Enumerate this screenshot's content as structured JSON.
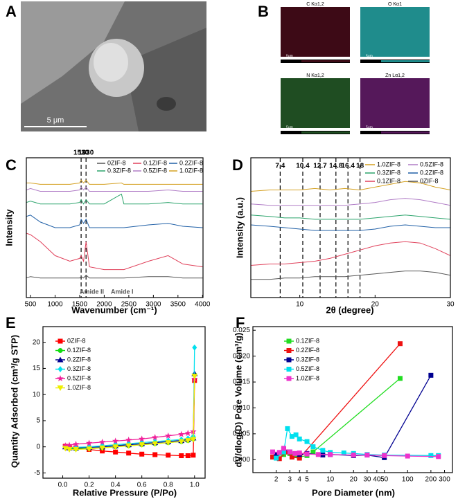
{
  "images": {
    "A": {
      "label": "A",
      "scale": "5 μm"
    },
    "B": {
      "label": "B",
      "maps": [
        {
          "title": "C Kα1,2",
          "scale": "5μm",
          "color": "#3d0a16"
        },
        {
          "title": "O Kα1",
          "scale": "5μm",
          "color": "#1f8c8c"
        },
        {
          "title": "N Kα1,2",
          "scale": "5μm",
          "color": "#1f4d22"
        },
        {
          "title": "Zn Lα1,2",
          "scale": "5μm",
          "color": "#55185a"
        }
      ]
    }
  },
  "chart_data": [
    {
      "type": "line",
      "label": "C",
      "xlabel": "Wavenumber (cm⁻¹)",
      "ylabel": "Intensity",
      "x": [
        415,
        500,
        700,
        1000,
        1300,
        1500,
        1530,
        1580,
        1630,
        1700,
        2000,
        2350,
        2400,
        2900,
        3300,
        3600,
        4000
      ],
      "xlim": [
        415,
        4010
      ],
      "ylim": [
        0,
        100
      ],
      "xticks": [
        500,
        1000,
        1500,
        2000,
        2500,
        3000,
        3500,
        4000
      ],
      "vlines": [
        1530,
        1630
      ],
      "annotations": [
        "Amide II",
        "Amide I"
      ],
      "legend": "upper center",
      "series": [
        {
          "name": "0ZIF-8",
          "color": "#555555",
          "values": [
            14,
            15,
            14,
            14,
            14,
            14,
            15,
            14,
            16,
            14,
            14,
            14,
            14,
            15,
            15,
            14,
            14
          ]
        },
        {
          "name": "0.1ZIF-8",
          "color": "#e0405a",
          "values": [
            46,
            45,
            40,
            30,
            26,
            28,
            30,
            26,
            40,
            22,
            20,
            20,
            20,
            26,
            30,
            24,
            22
          ]
        },
        {
          "name": "0.2ZIF-8",
          "color": "#1f5fa6",
          "values": [
            58,
            59,
            54,
            50,
            50,
            52,
            56,
            53,
            56,
            50,
            50,
            50,
            50,
            52,
            53,
            51,
            50
          ]
        },
        {
          "name": "0.3ZIF-8",
          "color": "#2aa36b",
          "values": [
            68,
            69,
            67,
            67,
            67,
            68,
            70,
            67,
            70,
            67,
            67,
            74,
            67,
            67,
            68,
            67,
            67
          ]
        },
        {
          "name": "0.5ZIF-8",
          "color": "#b07cc6",
          "values": [
            77,
            78,
            76,
            76,
            76,
            77,
            79,
            77,
            79,
            76,
            76,
            76,
            76,
            76,
            77,
            76,
            76
          ]
        },
        {
          "name": "1.0ZIF-8",
          "color": "#d4a020",
          "values": [
            82,
            82,
            81,
            81,
            81,
            82,
            84,
            82,
            84,
            81,
            81,
            82,
            81,
            81,
            81,
            81,
            81
          ]
        }
      ]
    },
    {
      "type": "line",
      "label": "D",
      "xlabel": "2θ (degree)",
      "ylabel": "Intensity (a.u.)",
      "x": [
        3.5,
        6,
        8,
        10,
        12,
        14,
        16,
        18,
        20,
        22,
        24,
        26,
        28,
        30
      ],
      "xlim": [
        3.5,
        30
      ],
      "ylim": [
        0,
        100
      ],
      "xticks": [
        10,
        20,
        30
      ],
      "vlines": [
        7.4,
        10.4,
        12.7,
        14.8,
        16.4,
        18
      ],
      "legend": "upper right",
      "series": [
        {
          "name": "1.0ZIF-8",
          "color": "#d4a020",
          "values": [
            76,
            77,
            77,
            77,
            78,
            77,
            78,
            77,
            79,
            81,
            83,
            82,
            79,
            77
          ]
        },
        {
          "name": "0.5ZIF-8",
          "color": "#b07cc6",
          "values": [
            67,
            66,
            66,
            66,
            66,
            66,
            66,
            67,
            68,
            70,
            71,
            70,
            68,
            66
          ]
        },
        {
          "name": "0.3ZIF-8",
          "color": "#2aa36b",
          "values": [
            59,
            58,
            57,
            57,
            56,
            56,
            56,
            56,
            57,
            58,
            59,
            58,
            57,
            56
          ]
        },
        {
          "name": "0.2ZIF-8",
          "color": "#1f5fa6",
          "values": [
            52,
            51,
            50,
            49,
            48,
            48,
            48,
            48,
            49,
            51,
            52,
            51,
            50,
            50
          ]
        },
        {
          "name": "0.1ZIF-8",
          "color": "#e0405a",
          "values": [
            23,
            24,
            24,
            25,
            26,
            28,
            31,
            34,
            37,
            39,
            40,
            39,
            35,
            30
          ]
        },
        {
          "name": "0ZIF-8",
          "color": "#555555",
          "values": [
            13,
            13,
            14,
            14,
            15,
            15,
            15,
            16,
            17,
            18,
            19,
            19,
            18,
            16
          ]
        }
      ]
    },
    {
      "type": "line",
      "label": "E",
      "xlabel": "Relative Pressure (P/Po)",
      "ylabel": "Quantity Adsorbed (cm³/g STP)",
      "x": [
        0.02,
        0.05,
        0.1,
        0.2,
        0.3,
        0.4,
        0.5,
        0.6,
        0.7,
        0.8,
        0.9,
        0.95,
        0.99,
        1.0
      ],
      "xlim": [
        -0.15,
        1.08
      ],
      "ylim": [
        -6,
        23
      ],
      "xticks": [
        {
          "value": 0,
          "label": "0.0"
        },
        0.2,
        0.4,
        0.6,
        0.8,
        {
          "value": 1,
          "label": "1.0"
        }
      ],
      "yticks": [
        -5,
        0,
        5,
        10,
        15,
        20
      ],
      "legend": "upper left",
      "series": [
        {
          "name": "0ZIF-8",
          "color": "#ff0000",
          "marker": "square",
          "values": [
            0.1,
            0,
            -0.2,
            -0.5,
            -0.8,
            -1.0,
            -1.2,
            -1.4,
            -1.5,
            -1.6,
            -1.7,
            -1.7,
            -1.6,
            12.7
          ]
        },
        {
          "name": "0.1ZIF-8",
          "color": "#11dd11",
          "marker": "circle",
          "values": [
            0,
            -0.3,
            -0.4,
            -0.3,
            -0.2,
            0,
            0.2,
            0.4,
            0.6,
            0.8,
            1.0,
            1.2,
            1.5,
            13.8
          ]
        },
        {
          "name": "0.2ZIF-8",
          "color": "#000090",
          "marker": "triangle",
          "values": [
            0,
            -0.2,
            -0.2,
            -0.1,
            0,
            0.2,
            0.4,
            0.6,
            0.8,
            1.0,
            1.2,
            1.4,
            1.7,
            14
          ]
        },
        {
          "name": "0.3ZIF-8",
          "color": "#00e0ee",
          "marker": "diamond",
          "values": [
            0,
            -0.2,
            -0.1,
            0,
            0.2,
            0.4,
            0.6,
            0.8,
            1.0,
            1.2,
            1.4,
            1.6,
            2.0,
            19
          ]
        },
        {
          "name": "0.5ZIF-8",
          "color": "#f0209a",
          "marker": "star",
          "values": [
            0.2,
            0.3,
            0.5,
            0.7,
            0.9,
            1.1,
            1.3,
            1.5,
            1.8,
            2.1,
            2.4,
            2.6,
            2.9,
            13
          ]
        },
        {
          "name": "1.0ZIF-8",
          "color": "#eeee00",
          "marker": "triangle-down",
          "values": [
            -0.3,
            -0.5,
            -0.5,
            -0.4,
            -0.2,
            0,
            0.2,
            0.4,
            0.6,
            0.8,
            1.0,
            1.2,
            1.4,
            13.5
          ]
        }
      ]
    },
    {
      "type": "line",
      "label": "F",
      "xlabel": "Pore Diameter (nm)",
      "ylabel": "dV/dlog(D) Pore Volume (cm³/g)",
      "xscale": "log",
      "xlim": [
        1,
        380
      ],
      "ylim": [
        -0.0025,
        0.0257
      ],
      "xticks": [
        2,
        3,
        4,
        5,
        10,
        20,
        30,
        40,
        50,
        100,
        200,
        300
      ],
      "yticks": [
        {
          "value": 0,
          "label": "0.000"
        },
        0.005,
        {
          "value": 0.01,
          "label": "0.010"
        },
        0.015,
        {
          "value": 0.02,
          "label": "0.020"
        },
        0.025
      ],
      "legend": "upper left",
      "series": [
        {
          "name": "0.1ZIF-8",
          "color": "#22dd22",
          "marker": "square",
          "x": [
            1.8,
            2.5,
            3,
            3.5,
            4,
            5,
            6,
            80
          ],
          "values": [
            0.0005,
            0.001,
            0.0012,
            0.0008,
            0.0005,
            0.0008,
            0.0015,
            0.0157
          ]
        },
        {
          "name": "0.2ZIF-8",
          "color": "#ee1111",
          "marker": "square",
          "x": [
            1.8,
            2.2,
            2.7,
            3.2,
            4,
            80
          ],
          "values": [
            0.0005,
            0.0002,
            0.0015,
            0.0005,
            0.0003,
            0.0224
          ]
        },
        {
          "name": "0.3ZIF-8",
          "color": "#000090",
          "marker": "square",
          "x": [
            2,
            2.5,
            3,
            4,
            5,
            8,
            10,
            20,
            30,
            50,
            200
          ],
          "values": [
            0.001,
            0.002,
            0.0015,
            0.001,
            0.0012,
            0.0009,
            0.001,
            0.0008,
            0.0009,
            0.0004,
            0.0163
          ]
        },
        {
          "name": "0.5ZIF-8",
          "color": "#00e0ee",
          "marker": "square",
          "x": [
            2,
            2.5,
            2.8,
            3.2,
            3.6,
            4,
            5,
            6,
            8,
            10,
            15,
            20,
            30,
            50,
            200,
            250
          ],
          "values": [
            0.0003,
            0.0015,
            0.006,
            0.0045,
            0.0048,
            0.004,
            0.0035,
            0.0025,
            0.0018,
            0.0014,
            0.0013,
            0.0012,
            0.001,
            0.0009,
            0.0008,
            0.0008
          ]
        },
        {
          "name": "1.0ZIF-8",
          "color": "#ee33cc",
          "marker": "square",
          "x": [
            1.8,
            2.2,
            2.5,
            3,
            3.5,
            4,
            5,
            7,
            10,
            20,
            30,
            50,
            100,
            250
          ],
          "values": [
            0.0015,
            0.0014,
            0.0022,
            0.0015,
            0.0012,
            0.0013,
            0.0011,
            0.001,
            0.001,
            0.0009,
            0.0009,
            0.0008,
            0.0007,
            0.0006
          ]
        }
      ]
    }
  ]
}
